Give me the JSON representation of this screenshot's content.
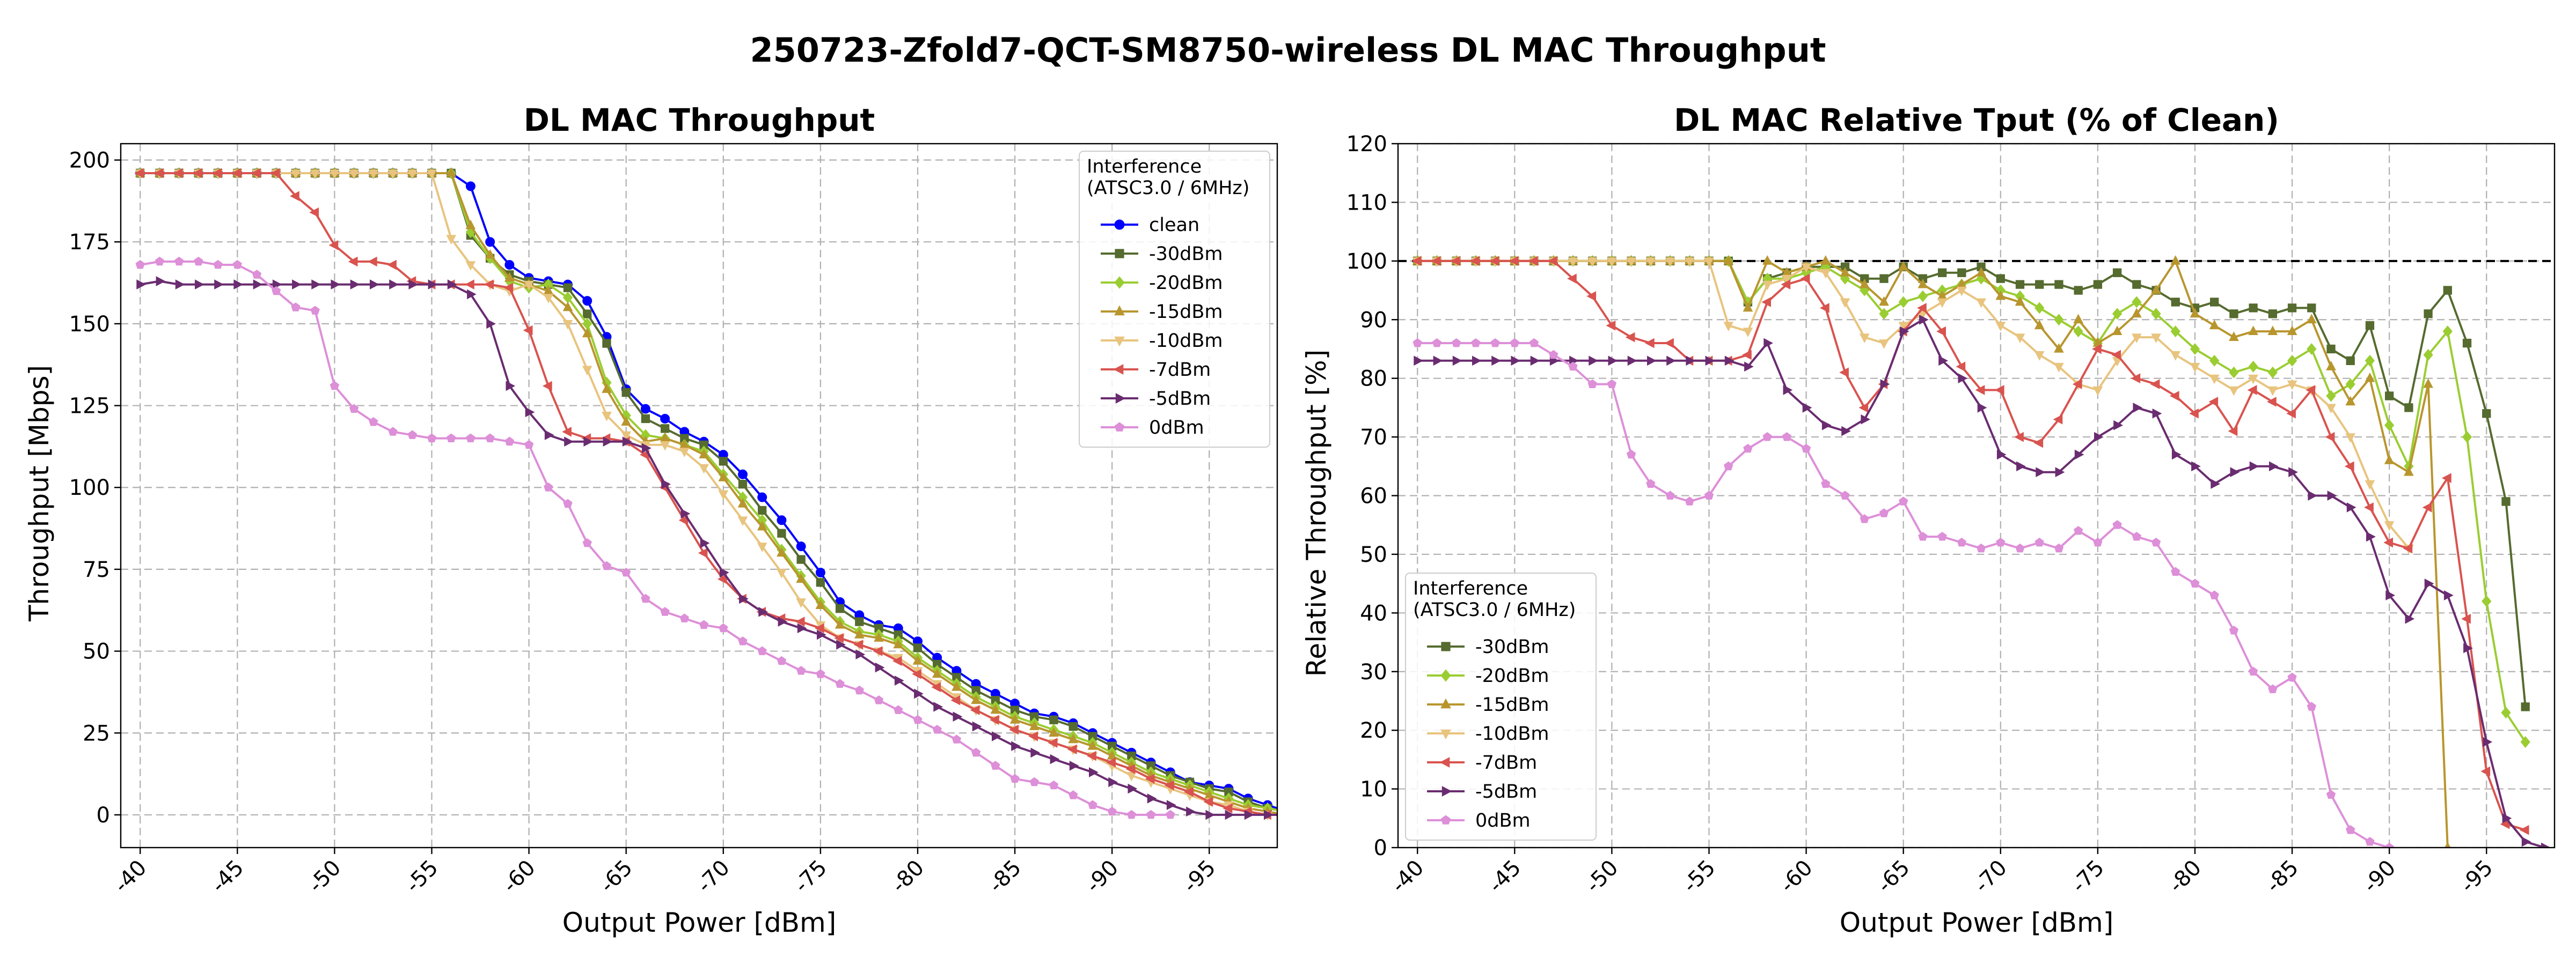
{
  "figure": {
    "suptitle": "250723-Zfold7-QCT-SM8750-wireless DL MAC Throughput"
  },
  "chart_data": [
    {
      "type": "line",
      "title": "DL MAC Throughput",
      "xlabel": "Output Power [dBm]",
      "ylabel": "Throughput [Mbps]",
      "xlim": [
        -39,
        -98.5
      ],
      "ylim": [
        -10,
        205
      ],
      "x_ticks": [
        -40,
        -45,
        -50,
        -55,
        -60,
        -65,
        -70,
        -75,
        -80,
        -85,
        -90,
        -95
      ],
      "x_tick_labels": [
        "-40",
        "-45",
        "-50",
        "-55",
        "-60",
        "-65",
        "-70",
        "-75",
        "-80",
        "-85",
        "-90",
        "-95"
      ],
      "y_ticks": [
        0,
        25,
        50,
        75,
        100,
        125,
        150,
        175,
        200
      ],
      "grid": true,
      "legend": {
        "title": "Interference\n(ATSC3.0 / 6MHz)",
        "position": "upper right"
      },
      "series": [
        {
          "name": "clean",
          "color": "#0000ff",
          "marker": "circle",
          "x_start": -40,
          "x_step": -1,
          "values": [
            196,
            196,
            196,
            196,
            196,
            196,
            196,
            196,
            196,
            196,
            196,
            196,
            196,
            196,
            196,
            196,
            196,
            192,
            175,
            168,
            164,
            163,
            162,
            157,
            146,
            130,
            124,
            121,
            117,
            114,
            110,
            104,
            97,
            90,
            82,
            74,
            65,
            61,
            58,
            57,
            53,
            48,
            44,
            40,
            37,
            34,
            31,
            30,
            28,
            25,
            22,
            19,
            16,
            13,
            10,
            9,
            8,
            5,
            3,
            1,
            0
          ]
        },
        {
          "name": "-30dBm",
          "color": "#556b2f",
          "marker": "square",
          "x_start": -40,
          "x_step": -1,
          "values": [
            196,
            196,
            196,
            196,
            196,
            196,
            196,
            196,
            196,
            196,
            196,
            196,
            196,
            196,
            196,
            196,
            196,
            177,
            170,
            165,
            163,
            162,
            161,
            153,
            144,
            129,
            121,
            118,
            115,
            113,
            108,
            101,
            93,
            86,
            78,
            71,
            63,
            59,
            57,
            55,
            51,
            46,
            42,
            38,
            35,
            32,
            30,
            29,
            27,
            24,
            21,
            18,
            15,
            12,
            10,
            8,
            7,
            4,
            2,
            1,
            0
          ]
        },
        {
          "name": "-20dBm",
          "color": "#9acd32",
          "marker": "diamond",
          "x_start": -40,
          "x_step": -1,
          "values": [
            196,
            196,
            196,
            196,
            196,
            196,
            196,
            196,
            196,
            196,
            196,
            196,
            196,
            196,
            196,
            196,
            196,
            178,
            170,
            163,
            161,
            162,
            158,
            150,
            132,
            122,
            116,
            115,
            113,
            111,
            104,
            97,
            90,
            81,
            73,
            65,
            59,
            56,
            55,
            53,
            48,
            44,
            40,
            36,
            33,
            30,
            28,
            26,
            24,
            22,
            19,
            16,
            13,
            11,
            9,
            7,
            5,
            3,
            2,
            1,
            0
          ]
        },
        {
          "name": "-15dBm",
          "color": "#b8962e",
          "marker": "triangle-up",
          "x_start": -40,
          "x_step": -1,
          "values": [
            196,
            196,
            196,
            196,
            196,
            196,
            196,
            196,
            196,
            196,
            196,
            196,
            196,
            196,
            196,
            196,
            196,
            180,
            171,
            164,
            162,
            160,
            155,
            147,
            130,
            120,
            114,
            115,
            113,
            110,
            103,
            95,
            88,
            80,
            72,
            64,
            58,
            55,
            54,
            52,
            47,
            43,
            39,
            35,
            32,
            29,
            27,
            25,
            23,
            21,
            18,
            15,
            12,
            10,
            8,
            6,
            4,
            2,
            1,
            0,
            0
          ]
        },
        {
          "name": "-10dBm",
          "color": "#e8c47e",
          "marker": "triangle-down",
          "x_start": -40,
          "x_step": -1,
          "values": [
            196,
            196,
            196,
            196,
            196,
            196,
            196,
            196,
            196,
            196,
            196,
            196,
            196,
            196,
            196,
            196,
            176,
            168,
            162,
            160,
            162,
            158,
            150,
            136,
            122,
            116,
            113,
            113,
            111,
            106,
            98,
            90,
            82,
            74,
            65,
            58,
            54,
            52,
            50,
            48,
            44,
            40,
            36,
            32,
            29,
            26,
            24,
            22,
            20,
            18,
            15,
            12,
            10,
            8,
            6,
            4,
            3,
            1,
            0,
            0,
            0
          ]
        },
        {
          "name": "-7dBm",
          "color": "#d9534f",
          "marker": "triangle-left",
          "x_start": -40,
          "x_step": -1,
          "values": [
            196,
            196,
            196,
            196,
            196,
            196,
            196,
            196,
            189,
            184,
            174,
            169,
            169,
            168,
            163,
            162,
            162,
            162,
            162,
            161,
            148,
            131,
            117,
            115,
            115,
            114,
            110,
            100,
            90,
            80,
            72,
            66,
            62,
            60,
            59,
            57,
            54,
            52,
            50,
            47,
            43,
            39,
            35,
            32,
            29,
            26,
            24,
            22,
            20,
            18,
            16,
            14,
            11,
            9,
            7,
            4,
            2,
            1,
            0,
            0,
            0
          ]
        },
        {
          "name": "-5dBm",
          "color": "#6a2c70",
          "marker": "triangle-right",
          "x_start": -40,
          "x_step": -1,
          "values": [
            162,
            163,
            162,
            162,
            162,
            162,
            162,
            162,
            162,
            162,
            162,
            162,
            162,
            162,
            162,
            162,
            162,
            159,
            150,
            131,
            123,
            116,
            114,
            114,
            114,
            114,
            112,
            101,
            92,
            83,
            74,
            66,
            62,
            59,
            57,
            55,
            52,
            49,
            45,
            41,
            37,
            33,
            30,
            27,
            24,
            21,
            19,
            17,
            15,
            13,
            10,
            8,
            5,
            3,
            1,
            0,
            0,
            0,
            0,
            0,
            0
          ]
        },
        {
          "name": "0dBm",
          "color": "#dd8fd8",
          "marker": "pentagon",
          "x_start": -40,
          "x_step": -1,
          "values": [
            168,
            169,
            169,
            169,
            168,
            168,
            165,
            160,
            155,
            154,
            131,
            124,
            120,
            117,
            116,
            115,
            115,
            115,
            115,
            114,
            113,
            100,
            95,
            83,
            76,
            74,
            66,
            62,
            60,
            58,
            57,
            53,
            50,
            47,
            44,
            43,
            40,
            38,
            35,
            32,
            29,
            26,
            23,
            19,
            15,
            11,
            10,
            9,
            6,
            3,
            1,
            0,
            0,
            0
          ]
        }
      ]
    },
    {
      "type": "line",
      "title": "DL MAC Relative Tput (% of Clean)",
      "xlabel": "Output Power [dBm]",
      "ylabel": "Relative Throughput [%]",
      "xlim": [
        -39,
        -98.5
      ],
      "ylim": [
        0,
        120
      ],
      "x_ticks": [
        -40,
        -45,
        -50,
        -55,
        -60,
        -65,
        -70,
        -75,
        -80,
        -85,
        -90,
        -95
      ],
      "x_tick_labels": [
        "-40",
        "-45",
        "-50",
        "-55",
        "-60",
        "-65",
        "-70",
        "-75",
        "-80",
        "-85",
        "-90",
        "-95"
      ],
      "y_ticks": [
        0,
        10,
        20,
        30,
        40,
        50,
        60,
        70,
        80,
        90,
        100,
        110,
        120
      ],
      "grid": true,
      "reference_line": {
        "y": 100,
        "style": "dashed",
        "color": "#000000"
      },
      "legend": {
        "title": "Interference\n(ATSC3.0 / 6MHz)",
        "position": "lower left"
      },
      "series": [
        {
          "name": "-30dBm",
          "color": "#556b2f",
          "marker": "square",
          "x_start": -40,
          "x_step": -1,
          "values": [
            100,
            100,
            100,
            100,
            100,
            100,
            100,
            100,
            100,
            100,
            100,
            100,
            100,
            100,
            100,
            100,
            100,
            93,
            97,
            98,
            99,
            99,
            99,
            97,
            97,
            99,
            97,
            98,
            98,
            99,
            97,
            96,
            96,
            96,
            95,
            96,
            98,
            96,
            95,
            93,
            92,
            93,
            91,
            92,
            91,
            92,
            92,
            85,
            83,
            89,
            77,
            75,
            91,
            95,
            86,
            74,
            59,
            24
          ]
        },
        {
          "name": "-20dBm",
          "color": "#9acd32",
          "marker": "diamond",
          "x_start": -40,
          "x_step": -1,
          "values": [
            100,
            100,
            100,
            100,
            100,
            100,
            100,
            100,
            100,
            100,
            100,
            100,
            100,
            100,
            100,
            100,
            100,
            93,
            97,
            97,
            98,
            99,
            97,
            95,
            91,
            93,
            94,
            95,
            96,
            97,
            95,
            94,
            92,
            90,
            88,
            86,
            91,
            93,
            91,
            88,
            85,
            83,
            81,
            82,
            81,
            83,
            85,
            77,
            79,
            83,
            72,
            65,
            84,
            88,
            70,
            42,
            23,
            18
          ]
        },
        {
          "name": "-15dBm",
          "color": "#b8962e",
          "marker": "triangle-up",
          "x_start": -40,
          "x_step": -1,
          "values": [
            100,
            100,
            100,
            100,
            100,
            100,
            100,
            100,
            100,
            100,
            100,
            100,
            100,
            100,
            100,
            100,
            100,
            92,
            100,
            98,
            99,
            100,
            98,
            96,
            93,
            99,
            96,
            94,
            96,
            98,
            94,
            93,
            89,
            85,
            90,
            86,
            88,
            91,
            95,
            100,
            91,
            89,
            87,
            88,
            88,
            88,
            90,
            82,
            76,
            80,
            66,
            64,
            79,
            0
          ]
        },
        {
          "name": "-10dBm",
          "color": "#e8c47e",
          "marker": "triangle-down",
          "x_start": -40,
          "x_step": -1,
          "values": [
            100,
            100,
            100,
            100,
            100,
            100,
            100,
            100,
            100,
            100,
            100,
            100,
            100,
            100,
            100,
            100,
            89,
            88,
            96,
            97,
            99,
            98,
            93,
            87,
            86,
            89,
            91,
            93,
            95,
            93,
            89,
            87,
            84,
            82,
            79,
            78,
            83,
            87,
            87,
            84,
            82,
            80,
            78,
            80,
            78,
            79,
            78,
            75,
            70,
            62,
            55,
            51
          ]
        },
        {
          "name": "-7dBm",
          "color": "#d9534f",
          "marker": "triangle-left",
          "x_start": -40,
          "x_step": -1,
          "values": [
            100,
            100,
            100,
            100,
            100,
            100,
            100,
            100,
            97,
            94,
            89,
            87,
            86,
            86,
            83,
            83,
            83,
            84,
            93,
            96,
            97,
            92,
            81,
            75,
            79,
            88,
            92,
            88,
            82,
            78,
            78,
            70,
            69,
            73,
            79,
            85,
            84,
            80,
            79,
            77,
            74,
            76,
            71,
            78,
            76,
            74,
            78,
            70,
            65,
            58,
            52,
            51,
            58,
            63,
            39,
            13,
            4,
            3
          ]
        },
        {
          "name": "-5dBm",
          "color": "#6a2c70",
          "marker": "triangle-right",
          "x_start": -40,
          "x_step": -1,
          "values": [
            83,
            83,
            83,
            83,
            83,
            83,
            83,
            83,
            83,
            83,
            83,
            83,
            83,
            83,
            83,
            83,
            83,
            82,
            86,
            78,
            75,
            72,
            71,
            73,
            79,
            88,
            90,
            83,
            80,
            75,
            67,
            65,
            64,
            64,
            67,
            70,
            72,
            75,
            74,
            67,
            65,
            62,
            64,
            65,
            65,
            64,
            60,
            60,
            58,
            53,
            43,
            39,
            45,
            43,
            34,
            18,
            5,
            1,
            0
          ]
        },
        {
          "name": "0dBm",
          "color": "#dd8fd8",
          "marker": "pentagon",
          "x_start": -40,
          "x_step": -1,
          "values": [
            86,
            86,
            86,
            86,
            86,
            86,
            86,
            84,
            82,
            79,
            79,
            67,
            62,
            60,
            59,
            60,
            65,
            68,
            70,
            70,
            68,
            62,
            60,
            56,
            57,
            59,
            53,
            53,
            52,
            51,
            52,
            51,
            52,
            51,
            54,
            52,
            55,
            53,
            52,
            47,
            45,
            43,
            37,
            30,
            27,
            29,
            24,
            9,
            3,
            1,
            0
          ]
        }
      ]
    }
  ]
}
